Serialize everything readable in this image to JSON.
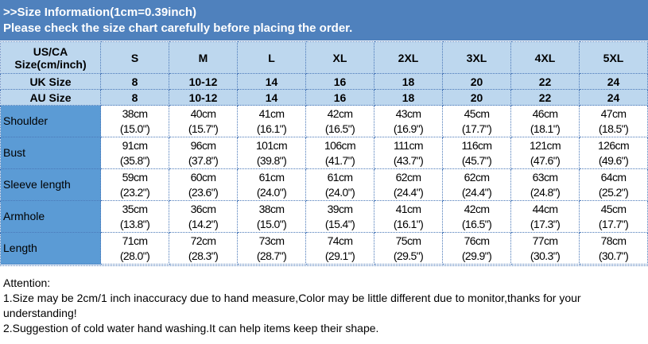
{
  "header": {
    "title": ">>Size Information(1cm=0.39inch)",
    "subtitle": "Please check the size chart carefully before placing the order."
  },
  "table": {
    "corner_label": [
      "US/CA",
      "Size(cm/inch)"
    ],
    "sizes": [
      "S",
      "M",
      "L",
      "XL",
      "2XL",
      "3XL",
      "4XL",
      "5XL"
    ],
    "uk": {
      "label": "UK Size",
      "values": [
        "8",
        "10-12",
        "14",
        "16",
        "18",
        "20",
        "22",
        "24"
      ]
    },
    "au": {
      "label": "AU Size",
      "values": [
        "8",
        "10-12",
        "14",
        "16",
        "18",
        "20",
        "22",
        "24"
      ]
    },
    "rows": [
      {
        "label": "Shoulder",
        "cm": [
          "38cm",
          "40cm",
          "41cm",
          "42cm",
          "43cm",
          "45cm",
          "46cm",
          "47cm"
        ],
        "inch": [
          "(15.0\")",
          "(15.7\")",
          "(16.1\")",
          "(16.5\")",
          "(16.9\")",
          "(17.7\")",
          "(18.1\")",
          "(18.5\")"
        ]
      },
      {
        "label": "Bust",
        "cm": [
          "91cm",
          "96cm",
          "101cm",
          "106cm",
          "111cm",
          "116cm",
          "121cm",
          "126cm"
        ],
        "inch": [
          "(35.8\")",
          "(37.8\")",
          "(39.8\")",
          "(41.7\")",
          "(43.7\")",
          "(45.7\")",
          "(47.6\")",
          "(49.6\")"
        ]
      },
      {
        "label": "Sleeve length",
        "cm": [
          "59cm",
          "60cm",
          "61cm",
          "61cm",
          "62cm",
          "62cm",
          "63cm",
          "64cm"
        ],
        "inch": [
          "(23.2\")",
          "(23.6\")",
          "(24.0\")",
          "(24.0\")",
          "(24.4\")",
          "(24.4\")",
          "(24.8\")",
          "(25.2\")"
        ]
      },
      {
        "label": "Armhole",
        "cm": [
          "35cm",
          "36cm",
          "38cm",
          "39cm",
          "41cm",
          "42cm",
          "44cm",
          "45cm"
        ],
        "inch": [
          "(13.8\")",
          "(14.2\")",
          "(15.0\")",
          "(15.4\")",
          "(16.1\")",
          "(16.5\")",
          "(17.3\")",
          "(17.7\")"
        ]
      },
      {
        "label": "Length",
        "cm": [
          "71cm",
          "72cm",
          "73cm",
          "74cm",
          "75cm",
          "76cm",
          "77cm",
          "78cm"
        ],
        "inch": [
          "(28.0\")",
          "(28.3\")",
          "(28.7\")",
          "(29.1\")",
          "(29.5\")",
          "(29.9\")",
          "(30.3\")",
          "(30.7\")"
        ]
      }
    ]
  },
  "notes": [
    "Attention:",
    "1.Size may be 2cm/1 inch inaccuracy due to hand measure,Color may be little different due to monitor,thanks for your understanding!",
    "2.Suggestion of cold water hand washing.It can help items keep their shape."
  ],
  "colors": {
    "banner": "#4f81bd",
    "header_rows": "#bdd7ee",
    "label_column": "#5b9bd5"
  }
}
